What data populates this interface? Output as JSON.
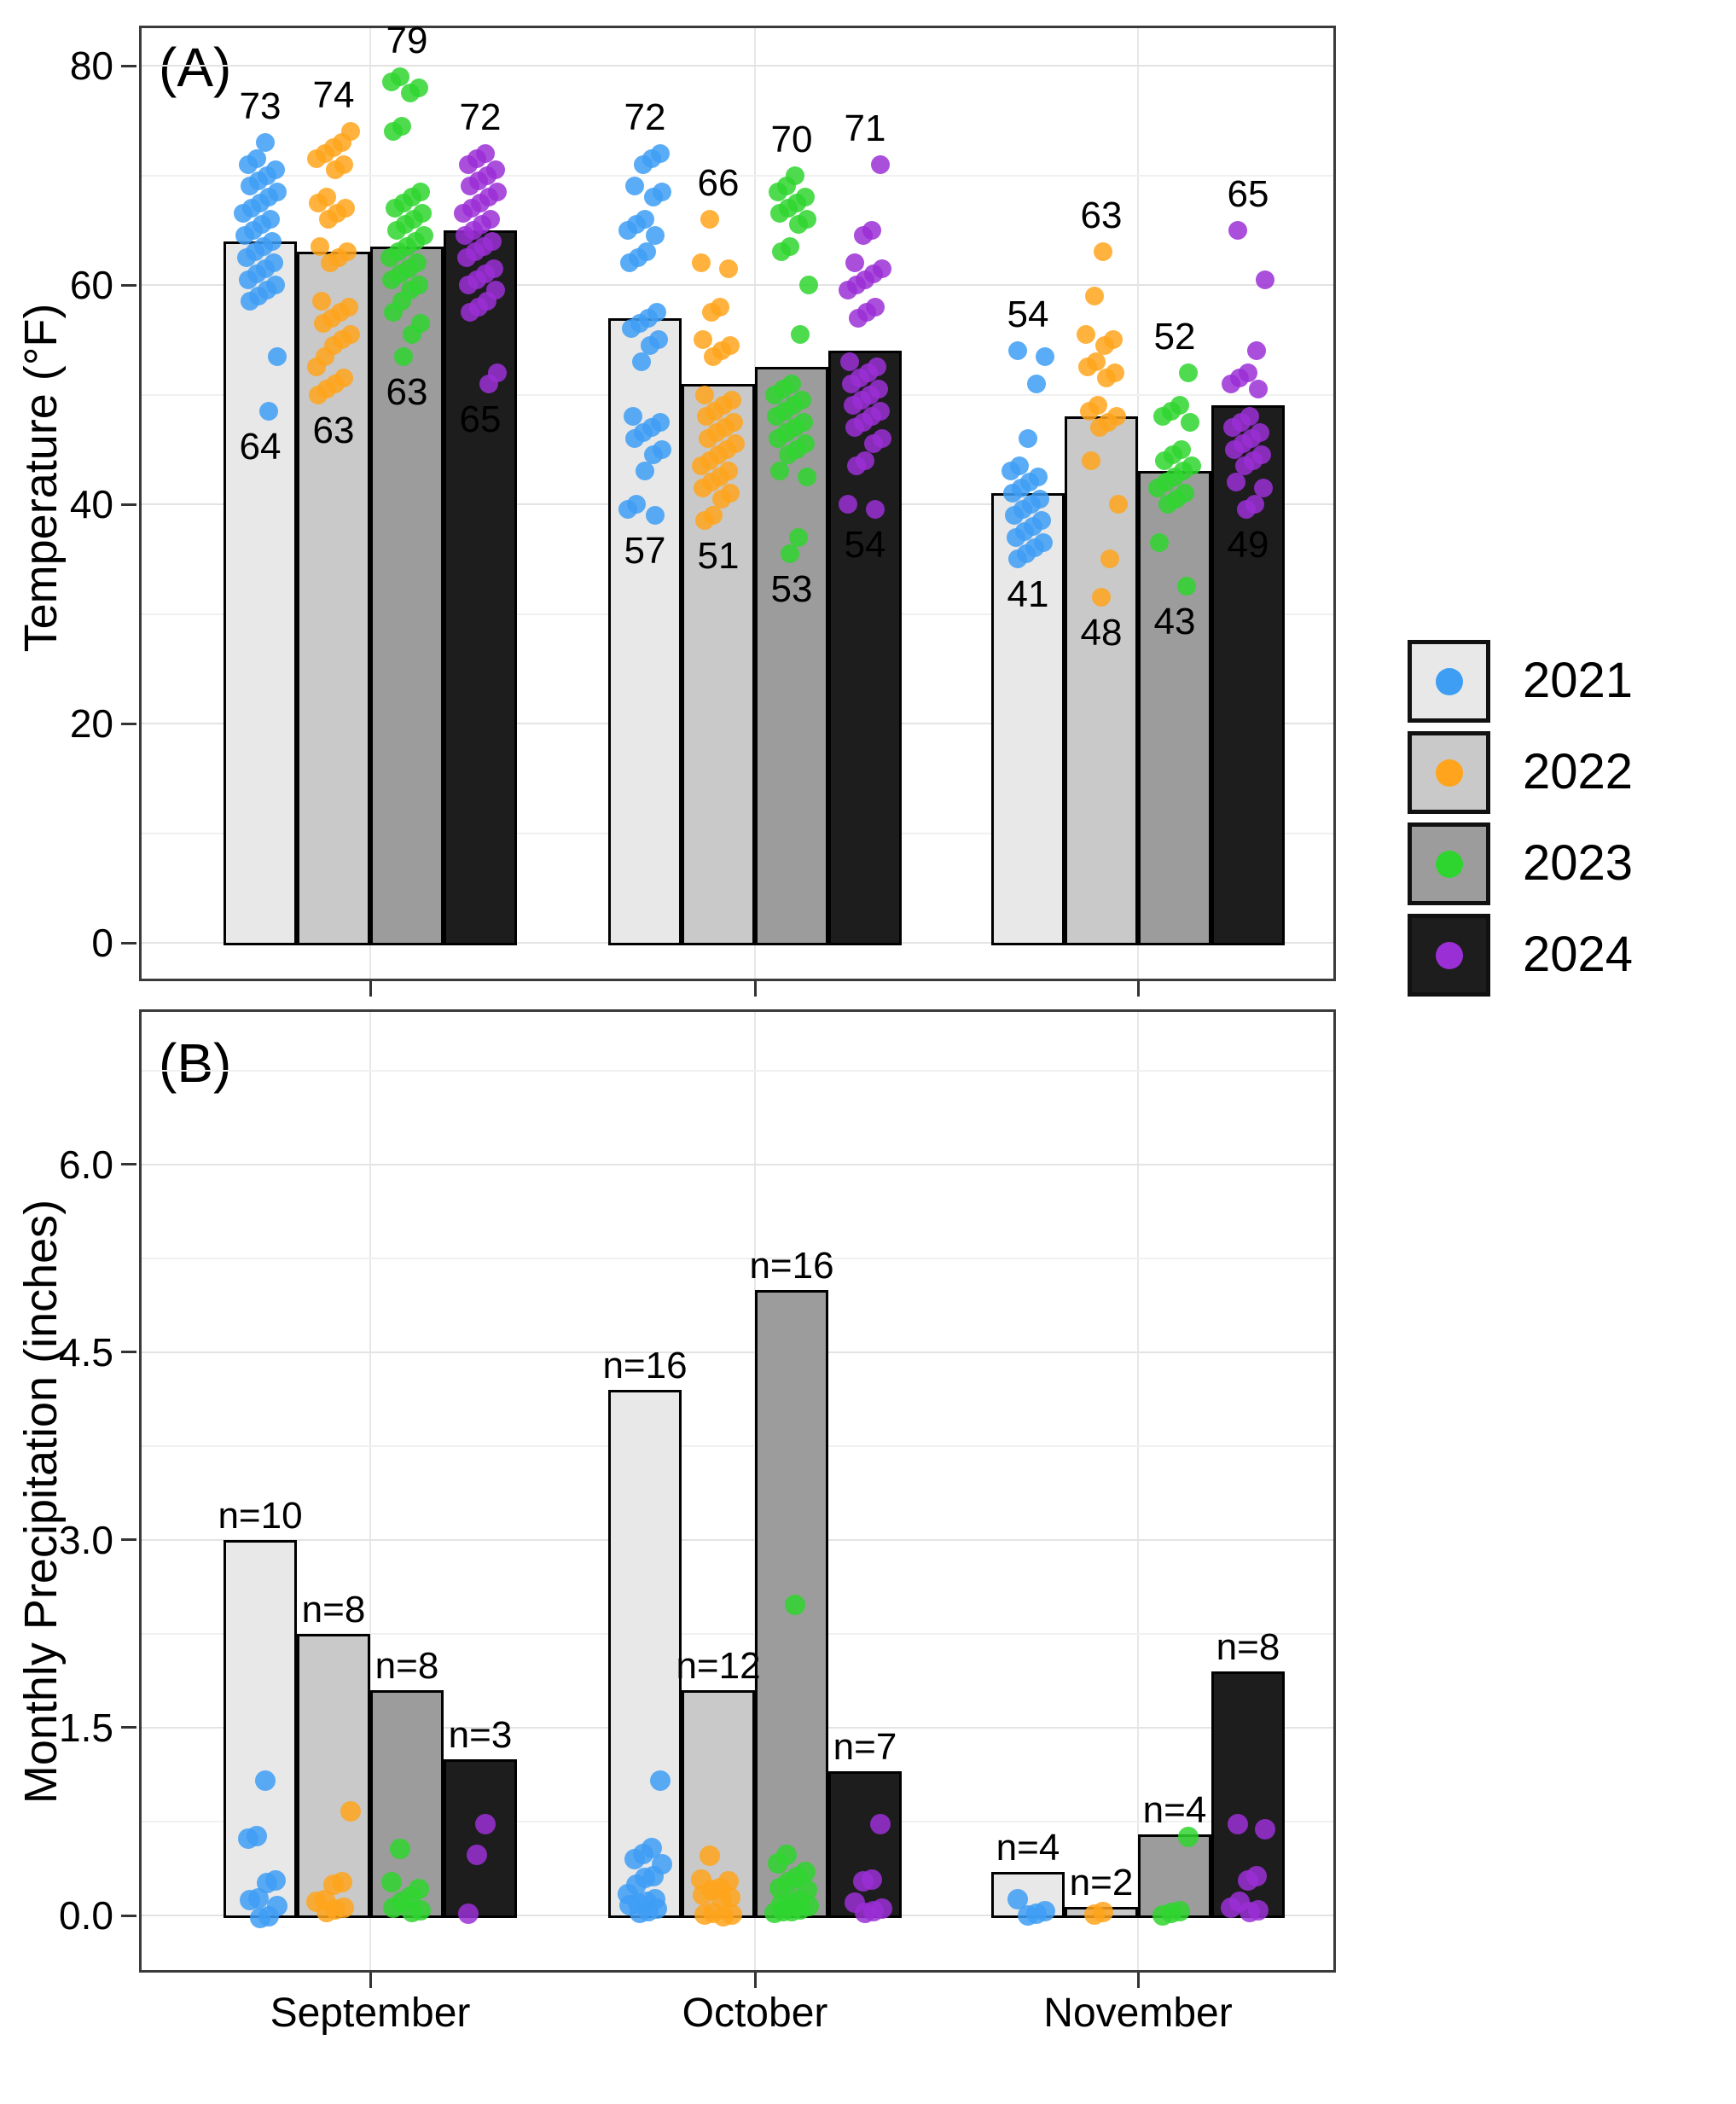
{
  "figure": {
    "background": "#FFFFFF"
  },
  "colors": {
    "panel_border": "#3B3B3B",
    "bar_stroke": "#000000",
    "grid_major": "#E3E3E3",
    "grid_minor": "#F0F0F0",
    "tick_color": "#333333",
    "text_color": "#000000"
  },
  "legend": {
    "entries": [
      {
        "label": "2021",
        "key_fill": "#E8E8E8",
        "dot_color": "#3E9EF4"
      },
      {
        "label": "2022",
        "key_fill": "#C9C9C9",
        "dot_color": "#FFA41C"
      },
      {
        "label": "2023",
        "key_fill": "#9C9C9C",
        "dot_color": "#2FD52F"
      },
      {
        "label": "2024",
        "key_fill": "#1D1D1D",
        "dot_color": "#9B2FD6"
      }
    ]
  },
  "x_axis": {
    "categories": [
      "September",
      "October",
      "November"
    ]
  },
  "chart_data": [
    {
      "panel": "A",
      "type": "bar",
      "subtype": "bar_with_jittered_points",
      "title": "(A)",
      "ylabel": "Temperature (°F)",
      "categories": [
        "September",
        "October",
        "November"
      ],
      "yticks": [
        0,
        20,
        40,
        60,
        80
      ],
      "ytick_labels": [
        "0",
        "20",
        "40",
        "60",
        "80"
      ],
      "minor_gridlines": [
        10,
        30,
        50,
        70
      ],
      "ylim": [
        0,
        83.5
      ],
      "legend_position": "right",
      "grid": true,
      "series": [
        {
          "name": "2021",
          "bar_fill": "#E8E8E8",
          "point_color": "#3E9EF4",
          "bar_values": [
            64,
            57,
            41
          ],
          "max_labels": [
            "73",
            "72",
            "54"
          ],
          "mean_labels": [
            "64",
            "57",
            "41"
          ],
          "points": [
            [
              73,
              71.5,
              71,
              70.5,
              70,
              69.5,
              69,
              68.5,
              68,
              67.5,
              67,
              66.5,
              66,
              65.5,
              65,
              64.5,
              64,
              63.5,
              63,
              62.5,
              62,
              61.5,
              61,
              60.5,
              60,
              59.5,
              59,
              58.5,
              53.5,
              48.5
            ],
            [
              72,
              71.5,
              71,
              69,
              68.5,
              68,
              66,
              65.5,
              65,
              64.5,
              63,
              62.5,
              62,
              57.5,
              57,
              56.5,
              56,
              55,
              54.5,
              53,
              48,
              47.5,
              47,
              46.5,
              46,
              45,
              44.5,
              43,
              40,
              39.5,
              39
            ],
            [
              54,
              53.5,
              51,
              46,
              43.5,
              43,
              42.5,
              42,
              41.5,
              41,
              40.5,
              40,
              39.5,
              39,
              38.5,
              38,
              37.5,
              37,
              36.5,
              36,
              35.5,
              35
            ]
          ]
        },
        {
          "name": "2022",
          "bar_fill": "#C9C9C9",
          "point_color": "#FFA41C",
          "bar_values": [
            63,
            51,
            48
          ],
          "max_labels": [
            "74",
            "66",
            "63"
          ],
          "mean_labels": [
            "63",
            "51",
            "48"
          ],
          "points": [
            [
              74,
              73,
              72.5,
              72,
              71.5,
              71,
              70.5,
              68,
              67.5,
              67,
              66.5,
              66,
              63.5,
              63,
              62.5,
              62,
              58.5,
              58,
              57.5,
              57,
              56.5,
              55.5,
              55,
              54.5,
              53.5,
              52.5,
              51.5,
              51,
              50.5,
              50
            ],
            [
              66,
              62,
              61.5,
              58,
              57.5,
              55,
              54.5,
              54,
              53.5,
              50,
              49.5,
              49,
              48.5,
              48,
              47.5,
              47,
              46.5,
              46,
              45.5,
              45,
              44.5,
              44,
              43.5,
              43,
              42.5,
              42,
              41.5,
              41,
              40.5,
              39,
              38.5
            ],
            [
              63,
              59,
              55.5,
              55,
              54.5,
              53,
              52.5,
              52,
              51.5,
              49,
              48.5,
              48,
              47.5,
              47,
              44,
              40,
              35,
              31.5
            ]
          ]
        },
        {
          "name": "2023",
          "bar_fill": "#9C9C9C",
          "point_color": "#2FD52F",
          "bar_values": [
            63.5,
            52.5,
            43
          ],
          "max_labels": [
            "79",
            "70",
            "52"
          ],
          "mean_labels": [
            "63",
            "53",
            "43"
          ],
          "points": [
            [
              79,
              78.5,
              78,
              77.5,
              74.5,
              74,
              68.5,
              68,
              67.5,
              67,
              66.5,
              66,
              65.5,
              65,
              64.5,
              64,
              63.5,
              63,
              62.5,
              62,
              61.5,
              61,
              60.5,
              60,
              59.5,
              58.5,
              57.5,
              56.5,
              55.5,
              53.5
            ],
            [
              70,
              69,
              68.5,
              68,
              67.5,
              67,
              66.5,
              66,
              65.5,
              63.5,
              63,
              60,
              55.5,
              51,
              50.5,
              50,
              49.5,
              49,
              48.5,
              48,
              47.5,
              47,
              46.5,
              46,
              45.5,
              45,
              44.5,
              43,
              42.5,
              37,
              35.5
            ],
            [
              52,
              49,
              48.5,
              48,
              47.5,
              45,
              44.5,
              44,
              43.5,
              43,
              42.5,
              42,
              41.5,
              41,
              40.5,
              40,
              36.5,
              32.5
            ]
          ]
        },
        {
          "name": "2024",
          "bar_fill": "#1D1D1D",
          "point_color": "#9B2FD6",
          "bar_values": [
            65,
            54,
            49
          ],
          "max_labels": [
            "72",
            "71",
            "65"
          ],
          "mean_labels": [
            "65",
            "54",
            "49"
          ],
          "points": [
            [
              72,
              71.5,
              71,
              70.5,
              70,
              69.5,
              69,
              68.5,
              68,
              67.5,
              67,
              66.5,
              66,
              65.5,
              65,
              64.5,
              64,
              63.5,
              63,
              62.5,
              61.5,
              61,
              60.5,
              60,
              59.5,
              58.5,
              58,
              57.5,
              52,
              51
            ],
            [
              71,
              65,
              64.5,
              62,
              61.5,
              61,
              60.5,
              60,
              59.5,
              58,
              57.5,
              57,
              53,
              52.5,
              52,
              51.5,
              51,
              50.5,
              50,
              49.5,
              49,
              48.5,
              48,
              47.5,
              47,
              46,
              45.5,
              44,
              43.5,
              40,
              39.5
            ],
            [
              65,
              60.5,
              54,
              52,
              51.5,
              51,
              50.5,
              48,
              47.5,
              47,
              46.5,
              46,
              45.5,
              45,
              44.5,
              44,
              43.5,
              42,
              41.5,
              40,
              39.5
            ]
          ]
        }
      ]
    },
    {
      "panel": "B",
      "type": "bar",
      "subtype": "bar_with_jittered_points",
      "title": "(B)",
      "ylabel": "Monthly Precipitation (inches)",
      "categories": [
        "September",
        "October",
        "November"
      ],
      "yticks": [
        0,
        1.5,
        3,
        4.5,
        6
      ],
      "ytick_labels": [
        "0.0",
        "1.5",
        "3.0",
        "4.5",
        "6.0"
      ],
      "minor_gridlines": [
        0.75,
        2.25,
        3.75,
        5.25,
        6.75
      ],
      "ylim": [
        0,
        7.2
      ],
      "grid": true,
      "series": [
        {
          "name": "2021",
          "bar_fill": "#E8E8E8",
          "point_color": "#3E9EF4",
          "bar_values": [
            3.0,
            4.2,
            0.35
          ],
          "count_labels": [
            "n=10",
            "n=16",
            "n=4"
          ],
          "points": [
            [
              1.1,
              0.65,
              0.62,
              0.28,
              0.25,
              0.12,
              0.1,
              0.05,
              0.02,
              0
            ],
            [
              1.1,
              0.55,
              0.5,
              0.45,
              0.4,
              0.3,
              0.28,
              0.22,
              0.2,
              0.15,
              0.12,
              0.1,
              0.08,
              0.05,
              0.02,
              0
            ],
            [
              0.15,
              0.05,
              0.02,
              0
            ]
          ]
        },
        {
          "name": "2022",
          "bar_fill": "#C9C9C9",
          "point_color": "#FFA41C",
          "bar_values": [
            2.25,
            1.8,
            0.07
          ],
          "count_labels": [
            "n=8",
            "n=12",
            "n=2"
          ],
          "points": [
            [
              0.85,
              0.28,
              0.25,
              0.12,
              0.1,
              0.05,
              0.03,
              0
            ],
            [
              0.5,
              0.3,
              0.28,
              0.22,
              0.2,
              0.15,
              0.12,
              0.1,
              0.05,
              0.03,
              0.02,
              0
            ],
            [
              0.05,
              0.02
            ]
          ]
        },
        {
          "name": "2023",
          "bar_fill": "#9C9C9C",
          "point_color": "#2FD52F",
          "bar_values": [
            1.8,
            5.0,
            0.65
          ],
          "count_labels": [
            "n=8",
            "n=16",
            "n=4"
          ],
          "points": [
            [
              0.55,
              0.28,
              0.22,
              0.15,
              0.1,
              0.05,
              0.02,
              0
            ],
            [
              2.5,
              0.5,
              0.42,
              0.35,
              0.3,
              0.25,
              0.2,
              0.18,
              0.15,
              0.12,
              0.1,
              0.08,
              0.05,
              0.03,
              0.02,
              0
            ],
            [
              0.65,
              0.05,
              0.03,
              0
            ]
          ]
        },
        {
          "name": "2024",
          "bar_fill": "#1D1D1D",
          "point_color": "#9B2FD6",
          "bar_values": [
            1.25,
            1.15,
            1.95
          ],
          "count_labels": [
            "n=3",
            "n=7",
            "n=8"
          ],
          "points": [
            [
              0.75,
              0.5,
              0.02
            ],
            [
              0.75,
              0.3,
              0.28,
              0.1,
              0.05,
              0.02,
              0
            ],
            [
              0.75,
              0.7,
              0.32,
              0.28,
              0.1,
              0.05,
              0.02,
              0
            ]
          ]
        }
      ]
    }
  ]
}
